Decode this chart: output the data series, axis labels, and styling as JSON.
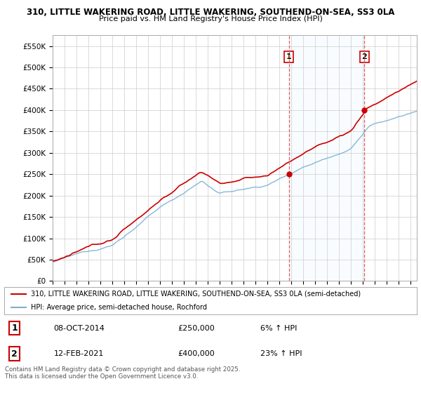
{
  "title1": "310, LITTLE WAKERING ROAD, LITTLE WAKERING, SOUTHEND-ON-SEA, SS3 0LA",
  "title2": "Price paid vs. HM Land Registry's House Price Index (HPI)",
  "legend_line1": "310, LITTLE WAKERING ROAD, LITTLE WAKERING, SOUTHEND-ON-SEA, SS3 0LA (semi-detached)",
  "legend_line2": "HPI: Average price, semi-detached house, Rochford",
  "annotation1_label": "1",
  "annotation1_date": "08-OCT-2014",
  "annotation1_price": "£250,000",
  "annotation1_hpi": "6% ↑ HPI",
  "annotation2_label": "2",
  "annotation2_date": "12-FEB-2021",
  "annotation2_price": "£400,000",
  "annotation2_hpi": "23% ↑ HPI",
  "footer": "Contains HM Land Registry data © Crown copyright and database right 2025.\nThis data is licensed under the Open Government Licence v3.0.",
  "price_color": "#cc0000",
  "hpi_color": "#7ab0d4",
  "vline_color": "#e06060",
  "span_color": "#ddeeff",
  "box_color": "#cc0000",
  "background_color": "#ffffff",
  "grid_color": "#cccccc",
  "sale1_year": 2014.79,
  "sale1_price": 250000,
  "sale2_year": 2021.12,
  "sale2_price": 400000,
  "xmin": 1995,
  "xmax": 2025.5,
  "ymin": 0,
  "ymax": 575000
}
